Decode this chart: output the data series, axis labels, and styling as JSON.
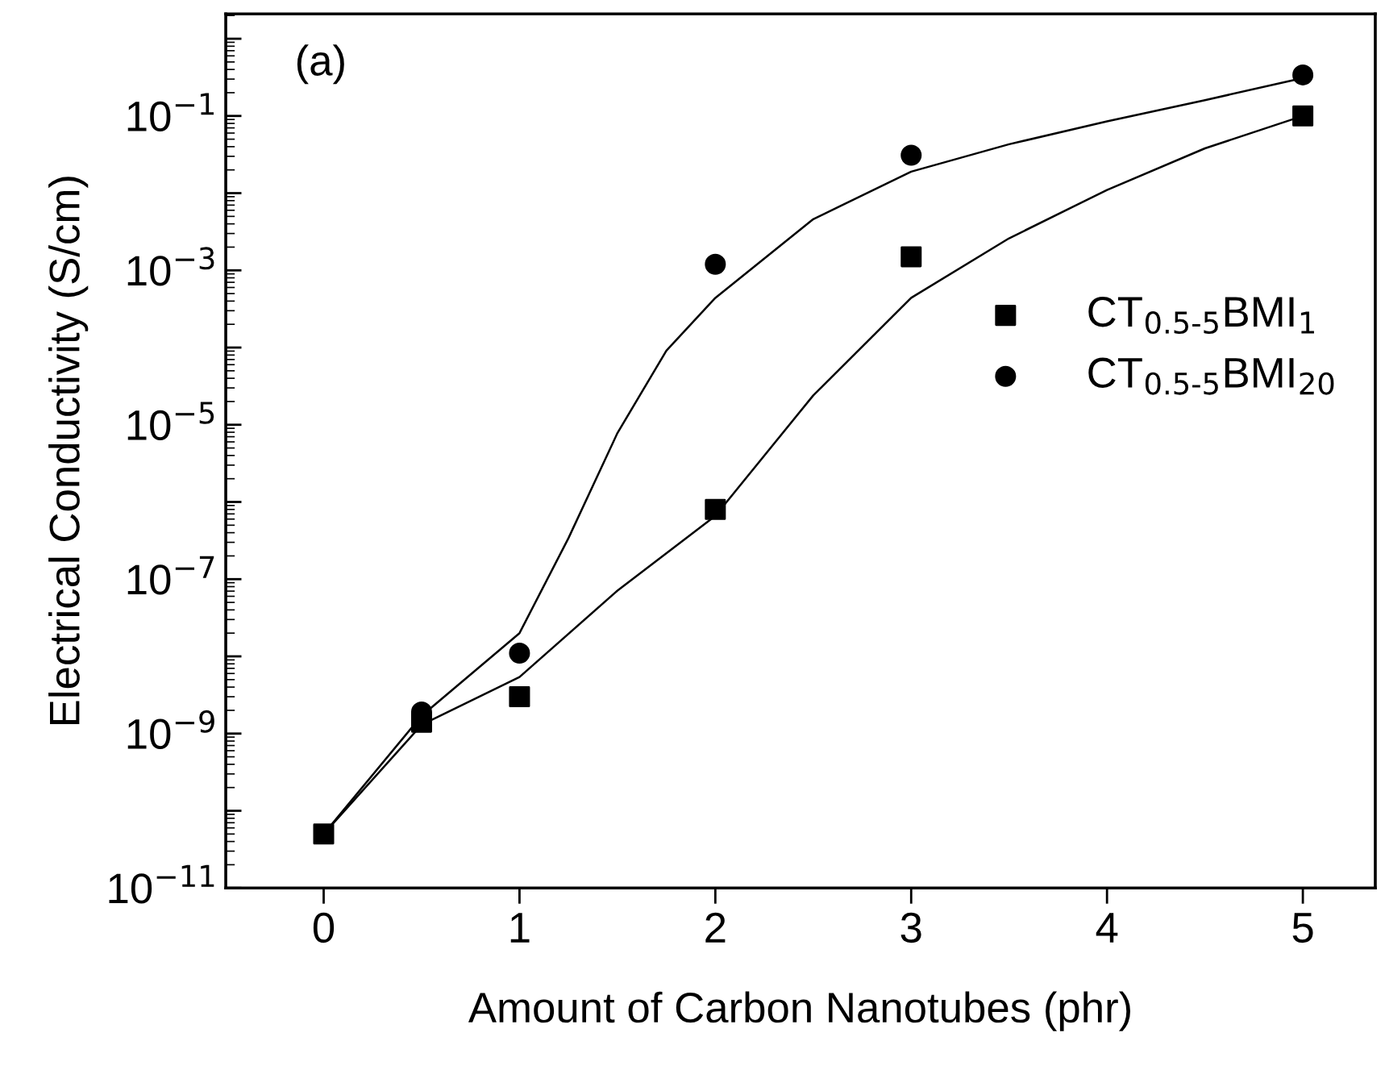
{
  "chart_data": {
    "type": "scatter",
    "xlabel": "Amount of Carbon Nanotubes (phr)",
    "ylabel": "Electrical Conductivity (S/cm)",
    "annotations": [
      "(a)"
    ],
    "log": "y",
    "xlim": [
      -0.5,
      5.37
    ],
    "xticks": [
      0,
      1,
      2,
      3,
      4,
      5
    ],
    "ylim": [
      1e-11,
      2.1
    ],
    "yticks": [
      {
        "value": 1e-11,
        "label": "10$^{−11}$"
      },
      {
        "value": 1e-10,
        "label": null
      },
      {
        "value": 1e-09,
        "label": "10$^{−9}$"
      },
      {
        "value": 1e-08,
        "label": null
      },
      {
        "value": 1e-07,
        "label": "10$^{−7}$"
      },
      {
        "value": 1e-06,
        "label": null
      },
      {
        "value": 1e-05,
        "label": "10$^{−5}$"
      },
      {
        "value": 0.0001,
        "label": null
      },
      {
        "value": 0.001,
        "label": "10$^{−3}$"
      },
      {
        "value": 0.01,
        "label": null
      },
      {
        "value": 0.1,
        "label": "10$^{−1}$"
      },
      {
        "value": 1,
        "label": null
      }
    ],
    "grid": false,
    "legend": "right",
    "series": [
      {
        "type": "line",
        "color": "#000000",
        "marker": "none",
        "x": [
          0,
          0.5,
          1,
          1.5,
          2,
          2.5,
          3,
          3.5,
          4,
          4.5,
          5
        ],
        "values": [
          5e-11,
          1.3e-09,
          5.4e-09,
          7.1e-08,
          6.6e-07,
          2.4e-05,
          0.00044,
          0.0026,
          0.011,
          0.038,
          0.1
        ]
      },
      {
        "type": "line",
        "color": "#000000",
        "marker": "none",
        "x": [
          0,
          0.5,
          1,
          1.25,
          1.5,
          1.75,
          2,
          2.5,
          3,
          3.5,
          4,
          4.5,
          5
        ],
        "values": [
          5e-11,
          1.7e-09,
          2e-08,
          3.4e-07,
          7.8e-06,
          9.1e-05,
          0.00044,
          0.0046,
          0.019,
          0.043,
          0.085,
          0.16,
          0.31
        ]
      },
      {
        "name": "CT$_{0.5-5}$BMI$_{1}$",
        "color": "#000000",
        "marker": "square",
        "x": [
          0,
          0.5,
          1,
          2,
          3,
          5
        ],
        "values": [
          5e-11,
          1.4e-09,
          3e-09,
          8e-07,
          0.0015,
          0.1
        ]
      },
      {
        "name": "CT$_{0.5-5}$BMI$_{20}$",
        "color": "#000000",
        "marker": "circle",
        "x": [
          0.5,
          1,
          2,
          3,
          5
        ],
        "values": [
          1.9e-09,
          1.1e-08,
          0.0012,
          0.031,
          0.34
        ]
      }
    ]
  }
}
